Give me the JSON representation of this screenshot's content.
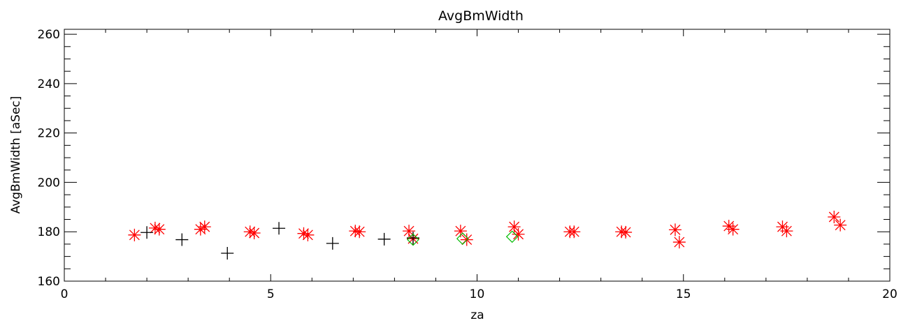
{
  "chart_data": {
    "type": "scatter",
    "title": "AvgBmWidth",
    "xlabel": "za",
    "ylabel": "AvgBmWidth [aSec]",
    "xlim": [
      0,
      20
    ],
    "ylim": [
      160,
      262
    ],
    "x_ticks": [
      0,
      5,
      10,
      15,
      20
    ],
    "y_ticks": [
      160,
      180,
      200,
      220,
      240,
      260
    ],
    "x_tick_labels": [
      "0",
      "5",
      "10",
      "15",
      "20"
    ],
    "y_tick_labels": [
      "160",
      "180",
      "200",
      "220",
      "240",
      "260"
    ],
    "grid": false,
    "series": [
      {
        "marker": "asterisk",
        "color": "#ff0000",
        "points": [
          [
            1.7,
            178.7
          ],
          [
            2.2,
            181.5
          ],
          [
            2.3,
            181.0
          ],
          [
            3.3,
            181.0
          ],
          [
            3.4,
            182.0
          ],
          [
            4.5,
            180.0
          ],
          [
            4.6,
            179.5
          ],
          [
            5.8,
            179.3
          ],
          [
            5.9,
            178.7
          ],
          [
            7.05,
            180.3
          ],
          [
            7.15,
            180.0
          ],
          [
            8.35,
            180.3
          ],
          [
            8.45,
            177.2
          ],
          [
            9.6,
            180.3
          ],
          [
            9.75,
            176.8
          ],
          [
            10.9,
            182.0
          ],
          [
            11.0,
            179.0
          ],
          [
            12.25,
            180.0
          ],
          [
            12.35,
            180.0
          ],
          [
            13.5,
            180.0
          ],
          [
            13.6,
            179.8
          ],
          [
            14.8,
            180.8
          ],
          [
            14.9,
            175.8
          ],
          [
            16.1,
            182.3
          ],
          [
            16.2,
            181.0
          ],
          [
            17.4,
            182.0
          ],
          [
            17.5,
            180.3
          ],
          [
            18.65,
            186.0
          ],
          [
            18.8,
            182.7
          ]
        ]
      },
      {
        "marker": "plus",
        "color": "#000000",
        "points": [
          [
            2.0,
            179.7
          ],
          [
            2.85,
            176.8
          ],
          [
            3.95,
            171.3
          ],
          [
            5.2,
            181.4
          ],
          [
            6.5,
            175.3
          ],
          [
            7.75,
            177.0
          ],
          [
            8.45,
            177.5
          ]
        ]
      },
      {
        "marker": "diamond",
        "color": "#00bb00",
        "points": [
          [
            8.45,
            176.8
          ],
          [
            9.65,
            177.2
          ],
          [
            10.85,
            178.0
          ]
        ]
      }
    ]
  }
}
